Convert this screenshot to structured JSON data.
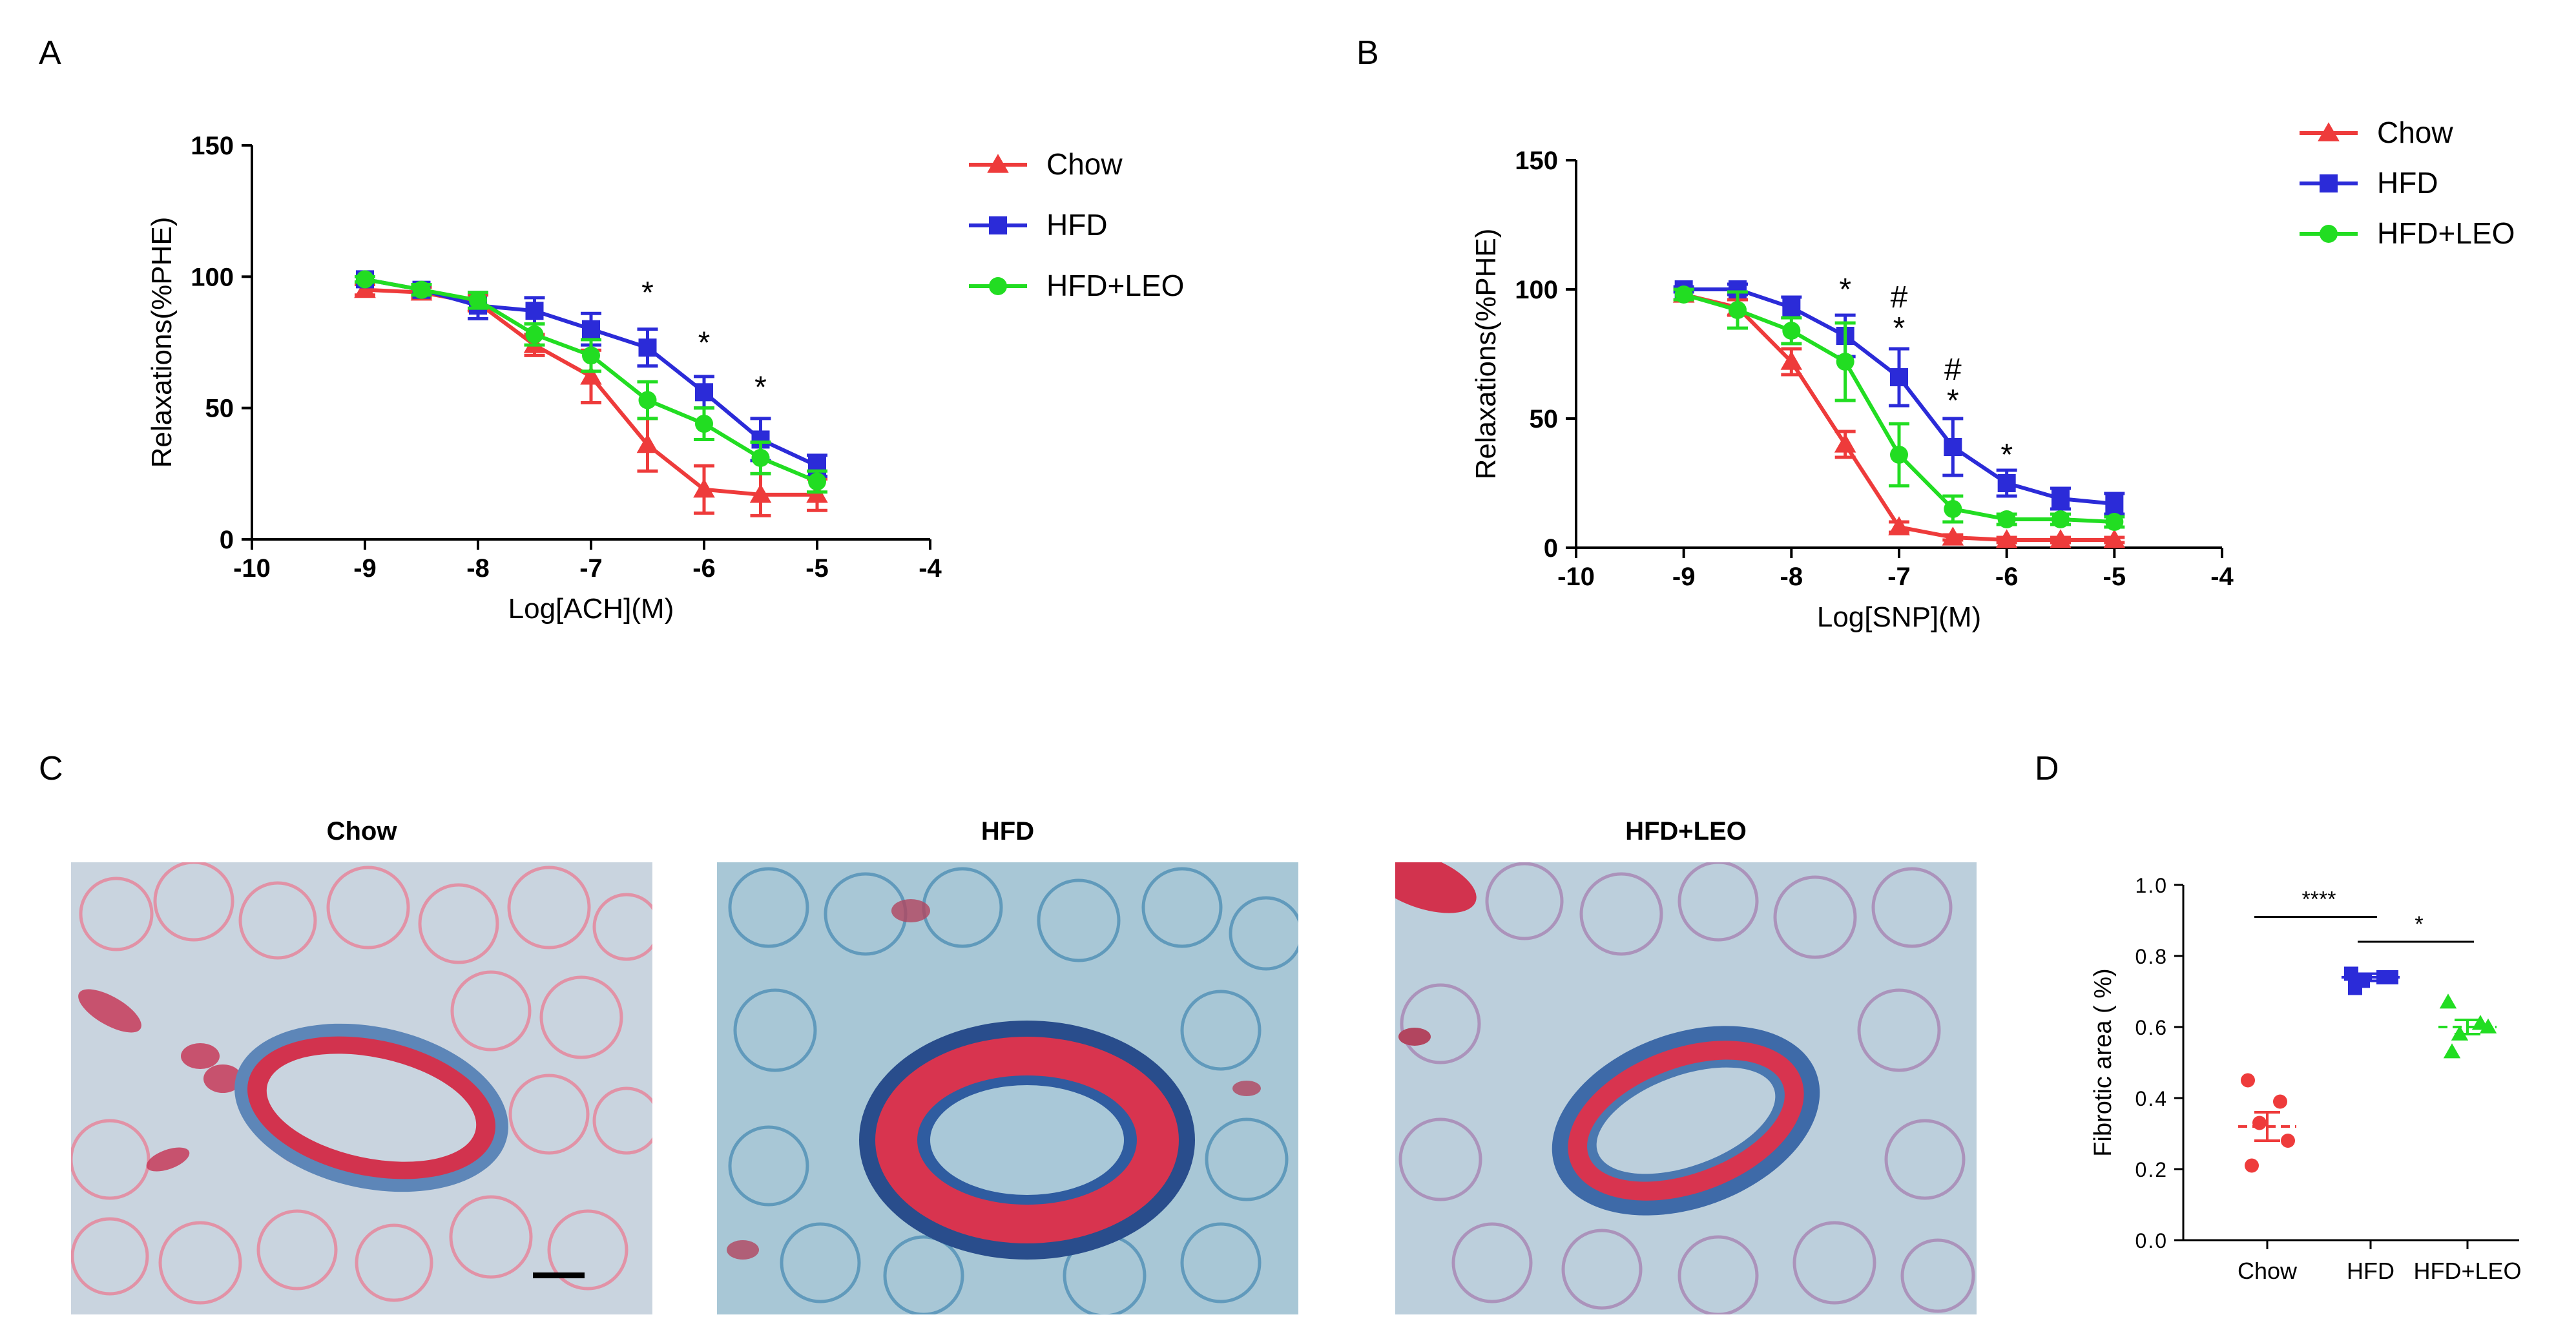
{
  "panels": {
    "a": "A",
    "b": "B",
    "c": "C",
    "d": "D"
  },
  "colors": {
    "chow": "#ee3b3b",
    "hfd": "#2b2bd8",
    "hfd_leo": "#22dd22",
    "axis": "#000000"
  },
  "chart_data": [
    {
      "id": "A",
      "type": "line",
      "xlabel": "Log[ACH](M)",
      "ylabel": "Relaxations(%PHE)",
      "xlim": [
        -10,
        -4
      ],
      "ylim": [
        0,
        150
      ],
      "xticks": [
        "-10",
        "-9",
        "-8",
        "-7",
        "-6",
        "-5",
        "-4"
      ],
      "xtick_values": [
        -10,
        -9,
        -8,
        -7,
        -6,
        -5,
        -4
      ],
      "yticks": [
        "0",
        "50",
        "100",
        "150"
      ],
      "ytick_values": [
        0,
        50,
        100,
        150
      ],
      "x": [
        -9,
        -8.5,
        -8,
        -7.5,
        -7,
        -6.5,
        -6,
        -5.5,
        -5
      ],
      "legend_position": "right",
      "series": [
        {
          "name": "Chow",
          "key": "chow",
          "marker": "triangle",
          "values": [
            95,
            94,
            90,
            74,
            62,
            36,
            19,
            17,
            17
          ],
          "errors": [
            2,
            2,
            3,
            4,
            10,
            10,
            9,
            8,
            6
          ]
        },
        {
          "name": "HFD",
          "key": "hfd",
          "marker": "square",
          "values": [
            99,
            95,
            89,
            87,
            80,
            73,
            56,
            38,
            28
          ],
          "errors": [
            1,
            2,
            5,
            5,
            6,
            7,
            6,
            8,
            4
          ]
        },
        {
          "name": "HFD+LEO",
          "key": "hfd_leo",
          "marker": "circle",
          "values": [
            99,
            95,
            91,
            78,
            70,
            53,
            44,
            31,
            22
          ],
          "errors": [
            1,
            2,
            3,
            4,
            6,
            7,
            6,
            6,
            4
          ]
        }
      ],
      "annotations": [
        {
          "x": -6.5,
          "y": 90,
          "text": "*"
        },
        {
          "x": -6,
          "y": 71,
          "text": "*"
        },
        {
          "x": -5.5,
          "y": 54,
          "text": "*"
        }
      ]
    },
    {
      "id": "B",
      "type": "line",
      "xlabel": "Log[SNP](M)",
      "ylabel": "Relaxations(%PHE)",
      "xlim": [
        -10,
        -4
      ],
      "ylim": [
        0,
        150
      ],
      "xticks": [
        "-10",
        "-9",
        "-8",
        "-7",
        "-6",
        "-5",
        "-4"
      ],
      "xtick_values": [
        -10,
        -9,
        -8,
        -7,
        -6,
        -5,
        -4
      ],
      "yticks": [
        "0",
        "50",
        "100",
        "150"
      ],
      "ytick_values": [
        0,
        50,
        100,
        150
      ],
      "x": [
        -9,
        -8.5,
        -8,
        -7.5,
        -7,
        -6.5,
        -6,
        -5.5,
        -5
      ],
      "legend_position": "top-right",
      "series": [
        {
          "name": "Chow",
          "key": "chow",
          "marker": "triangle",
          "values": [
            98,
            93,
            72,
            40,
            8,
            4,
            3,
            3,
            3
          ],
          "errors": [
            2,
            3,
            5,
            5,
            2,
            1,
            1,
            1,
            1
          ]
        },
        {
          "name": "HFD",
          "key": "hfd",
          "marker": "square",
          "values": [
            100,
            100,
            93,
            82,
            66,
            39,
            25,
            19,
            17
          ],
          "errors": [
            1,
            2,
            4,
            8,
            11,
            11,
            5,
            4,
            4
          ]
        },
        {
          "name": "HFD+LEO",
          "key": "hfd_leo",
          "marker": "circle",
          "values": [
            98,
            92,
            84,
            72,
            36,
            15,
            11,
            11,
            10
          ],
          "errors": [
            2,
            7,
            5,
            15,
            12,
            5,
            2,
            2,
            2
          ]
        }
      ],
      "annotations": [
        {
          "x": -7.5,
          "y": 96,
          "text": "*"
        },
        {
          "x": -7,
          "y": 93,
          "text": "#"
        },
        {
          "x": -7,
          "y": 81,
          "text": "*"
        },
        {
          "x": -6.5,
          "y": 65,
          "text": "#"
        },
        {
          "x": -6.5,
          "y": 53,
          "text": "*"
        },
        {
          "x": -6,
          "y": 32,
          "text": "*"
        }
      ]
    },
    {
      "id": "D",
      "type": "scatter",
      "xlabel": "",
      "ylabel": "Fibrotic area ( %)",
      "ylim": [
        0,
        1.0
      ],
      "yticks": [
        "0.0",
        "0.2",
        "0.4",
        "0.6",
        "0.8",
        "1.0"
      ],
      "ytick_values": [
        0,
        0.2,
        0.4,
        0.6,
        0.8,
        1.0
      ],
      "categories": [
        "Chow",
        "HFD",
        "HFD+LEO"
      ],
      "groups": [
        {
          "name": "Chow",
          "key": "chow",
          "marker": "circle",
          "points": [
            0.45,
            0.39,
            0.33,
            0.28,
            0.21
          ],
          "mean": 0.32,
          "sem": 0.04
        },
        {
          "name": "HFD",
          "key": "hfd",
          "marker": "square",
          "points": [
            0.75,
            0.74,
            0.73,
            0.74,
            0.71
          ],
          "mean": 0.74,
          "sem": 0.01
        },
        {
          "name": "HFD+LEO",
          "key": "hfd_leo",
          "marker": "triangle",
          "points": [
            0.67,
            0.61,
            0.58,
            0.6,
            0.53
          ],
          "mean": 0.6,
          "sem": 0.02
        }
      ],
      "brackets": [
        {
          "from": 0,
          "to": 1,
          "y": 0.91,
          "text": "****"
        },
        {
          "from": 1,
          "to": 2,
          "y": 0.84,
          "text": "*"
        }
      ]
    }
  ],
  "histology": {
    "titles": [
      "Chow",
      "HFD",
      "HFD+LEO"
    ]
  }
}
